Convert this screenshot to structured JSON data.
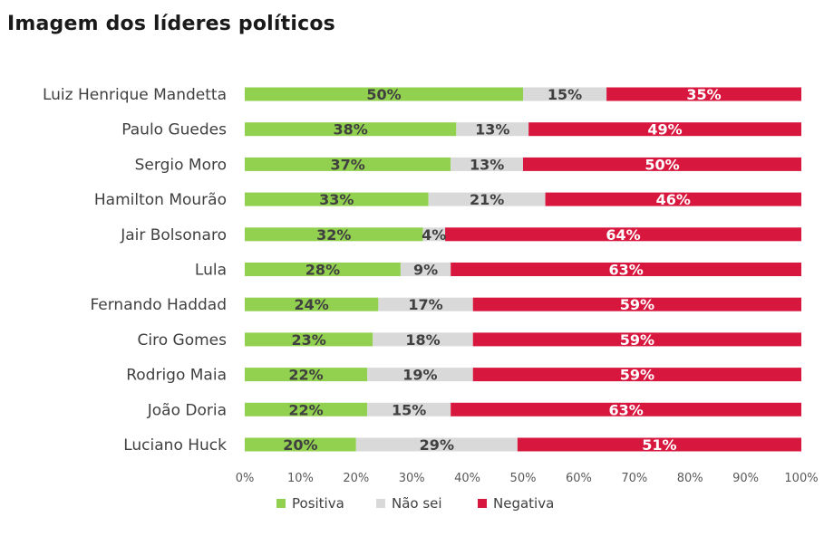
{
  "chart_data": {
    "type": "bar",
    "orientation": "horizontal",
    "stacked": true,
    "title": "Imagem dos líderes políticos",
    "categories": [
      "Luiz Henrique Mandetta",
      "Paulo Guedes",
      "Sergio Moro",
      "Hamilton Mourão",
      "Jair Bolsonaro",
      "Lula",
      "Fernando Haddad",
      "Ciro Gomes",
      "Rodrigo Maia",
      "João Doria",
      "Luciano Huck"
    ],
    "series": [
      {
        "name": "Positiva",
        "color": "#92d050",
        "label_color": "#404040",
        "values": [
          50,
          38,
          37,
          33,
          32,
          28,
          24,
          23,
          22,
          22,
          20
        ]
      },
      {
        "name": "Não sei",
        "color": "#d9d9d9",
        "label_color": "#404040",
        "values": [
          15,
          13,
          13,
          21,
          4,
          9,
          17,
          18,
          19,
          15,
          29
        ]
      },
      {
        "name": "Negativa",
        "color": "#d8173e",
        "label_color": "#ffffff",
        "values": [
          35,
          49,
          50,
          46,
          64,
          63,
          59,
          59,
          59,
          63,
          51
        ]
      }
    ],
    "xlim": [
      0,
      100
    ],
    "x_ticks": [
      "0%",
      "10%",
      "20%",
      "30%",
      "40%",
      "50%",
      "60%",
      "70%",
      "80%",
      "90%",
      "100%"
    ],
    "value_suffix": "%",
    "grid": false,
    "legend_position": "bottom"
  }
}
